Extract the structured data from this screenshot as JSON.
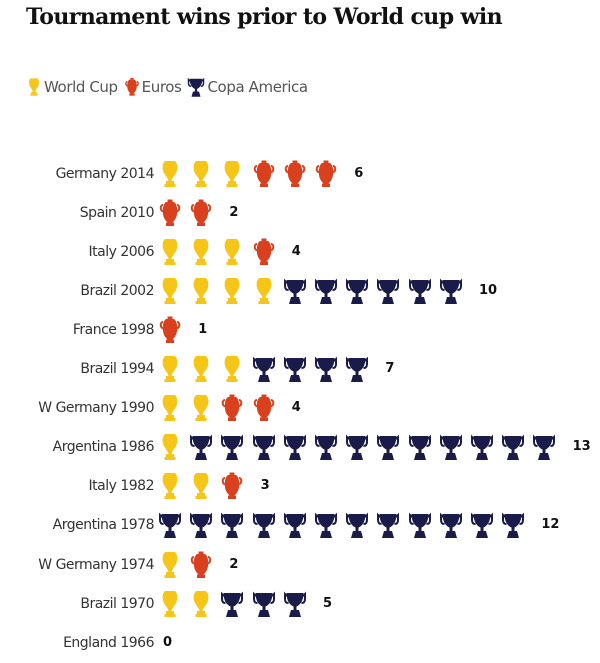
{
  "chart_data": {
    "type": "pictograph",
    "title": "Tournament wins prior to World cup win",
    "legend": [
      {
        "key": "world_cup",
        "label": "World Cup",
        "color": "#F5C518",
        "icon": "world-cup-trophy-icon"
      },
      {
        "key": "euros",
        "label": "Euros",
        "color": "#D9411E",
        "icon": "euros-trophy-icon"
      },
      {
        "key": "copa_america",
        "label": "Copa America",
        "color": "#1B1B4A",
        "icon": "copa-america-trophy-icon"
      }
    ],
    "rows": [
      {
        "label": "Germany 2014",
        "world_cup": 3,
        "euros": 3,
        "copa_america": 0,
        "total": 6
      },
      {
        "label": "Spain 2010",
        "world_cup": 0,
        "euros": 2,
        "copa_america": 0,
        "total": 2
      },
      {
        "label": "Italy 2006",
        "world_cup": 3,
        "euros": 1,
        "copa_america": 0,
        "total": 4
      },
      {
        "label": "Brazil 2002",
        "world_cup": 4,
        "euros": 0,
        "copa_america": 6,
        "total": 10
      },
      {
        "label": "France 1998",
        "world_cup": 0,
        "euros": 1,
        "copa_america": 0,
        "total": 1
      },
      {
        "label": "Brazil 1994",
        "world_cup": 3,
        "euros": 0,
        "copa_america": 4,
        "total": 7
      },
      {
        "label": "W Germany 1990",
        "world_cup": 2,
        "euros": 2,
        "copa_america": 0,
        "total": 4
      },
      {
        "label": "Argentina 1986",
        "world_cup": 1,
        "euros": 0,
        "copa_america": 12,
        "total": 13
      },
      {
        "label": "Italy 1982",
        "world_cup": 2,
        "euros": 1,
        "copa_america": 0,
        "total": 3
      },
      {
        "label": "Argentina 1978",
        "world_cup": 0,
        "euros": 0,
        "copa_america": 12,
        "total": 12
      },
      {
        "label": "W Germany 1974",
        "world_cup": 1,
        "euros": 1,
        "copa_america": 0,
        "total": 2
      },
      {
        "label": "Brazil 1970",
        "world_cup": 2,
        "euros": 0,
        "copa_america": 3,
        "total": 5
      },
      {
        "label": "England 1966",
        "world_cup": 0,
        "euros": 0,
        "copa_america": 0,
        "total": 0
      }
    ]
  }
}
